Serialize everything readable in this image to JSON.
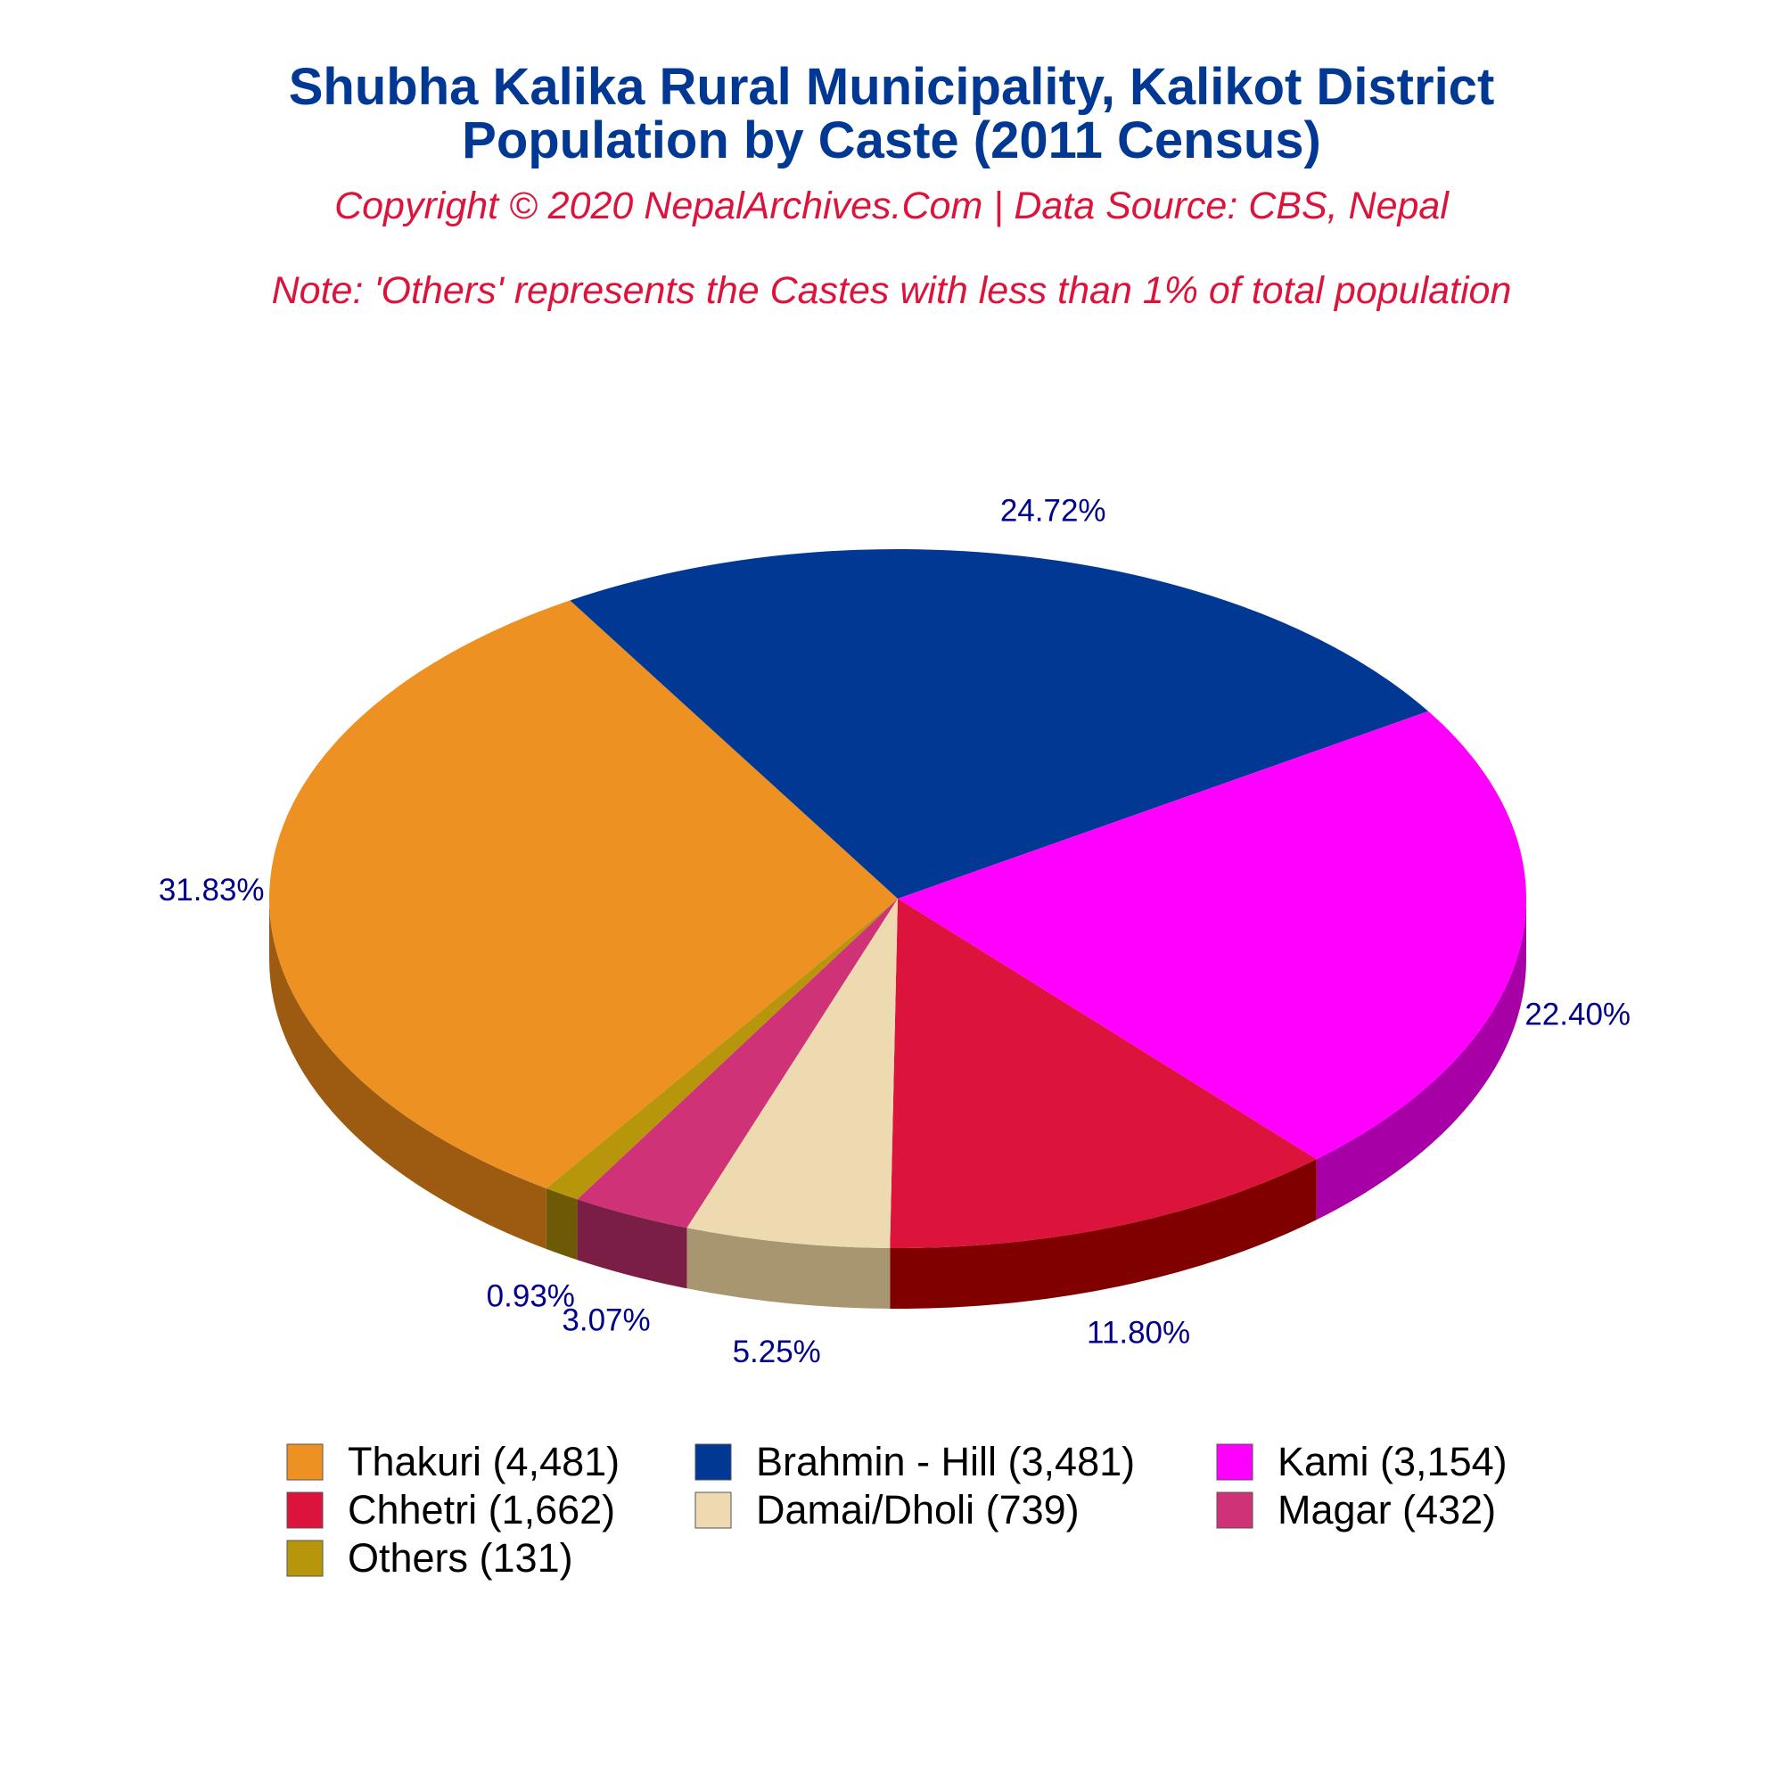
{
  "header": {
    "title_line1": "Shubha Kalika Rural Municipality, Kalikot District",
    "title_line2": "Population by Caste (2011 Census)",
    "copyright": "Copyright © 2020 NepalArchives.Com | Data Source: CBS, Nepal",
    "note": "Note: 'Others' represents the Castes with less than 1% of total population"
  },
  "chart_data": {
    "type": "pie",
    "style": "3d",
    "legend_position": "bottom",
    "slices": [
      {
        "name": "Thakuri",
        "value": 4481,
        "percent_label": "31.83%",
        "legend_label": "Thakuri (4,481)",
        "color": "#EC9122",
        "side_color": "#9C5B10"
      },
      {
        "name": "Brahmin - Hill",
        "value": 3481,
        "percent_label": "24.72%",
        "legend_label": "Brahmin - Hill (3,481)",
        "color": "#003893",
        "side_color": "#000038"
      },
      {
        "name": "Kami",
        "value": 3154,
        "percent_label": "22.40%",
        "legend_label": "Kami (3,154)",
        "color": "#FF00FF",
        "side_color": "#A600A6"
      },
      {
        "name": "Chhetri",
        "value": 1662,
        "percent_label": "11.80%",
        "legend_label": "Chhetri (1,662)",
        "color": "#DC143C",
        "side_color": "#800000"
      },
      {
        "name": "Damai/Dholi",
        "value": 739,
        "percent_label": "5.25%",
        "legend_label": "Damai/Dholi (739)",
        "color": "#EEDAB0",
        "side_color": "#A89670"
      },
      {
        "name": "Magar",
        "value": 432,
        "percent_label": "3.07%",
        "legend_label": "Magar (432)",
        "color": "#CF3276",
        "side_color": "#7A1E46"
      },
      {
        "name": "Others",
        "value": 131,
        "percent_label": "0.93%",
        "legend_label": "Others (131)",
        "color": "#B8960B",
        "side_color": "#6E5A06"
      }
    ]
  }
}
